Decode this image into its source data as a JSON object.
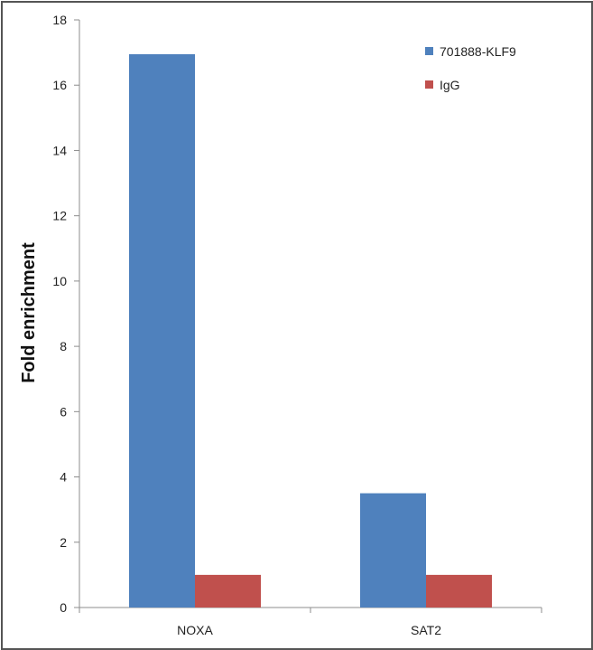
{
  "chart_data": {
    "type": "bar",
    "title": "",
    "xlabel": "",
    "ylabel": "Fold enrichment",
    "categories": [
      "NOXA",
      "SAT2"
    ],
    "series": [
      {
        "name": "701888-KLF9",
        "values": [
          16.95,
          3.5
        ],
        "color": "#4F81BD"
      },
      {
        "name": "IgG",
        "values": [
          1.0,
          1.0
        ],
        "color": "#C0504D"
      }
    ],
    "ylim": [
      0,
      18
    ],
    "yticks": [
      0,
      2,
      4,
      6,
      8,
      10,
      12,
      14,
      16,
      18
    ],
    "grid": false,
    "legend": "top-right"
  }
}
